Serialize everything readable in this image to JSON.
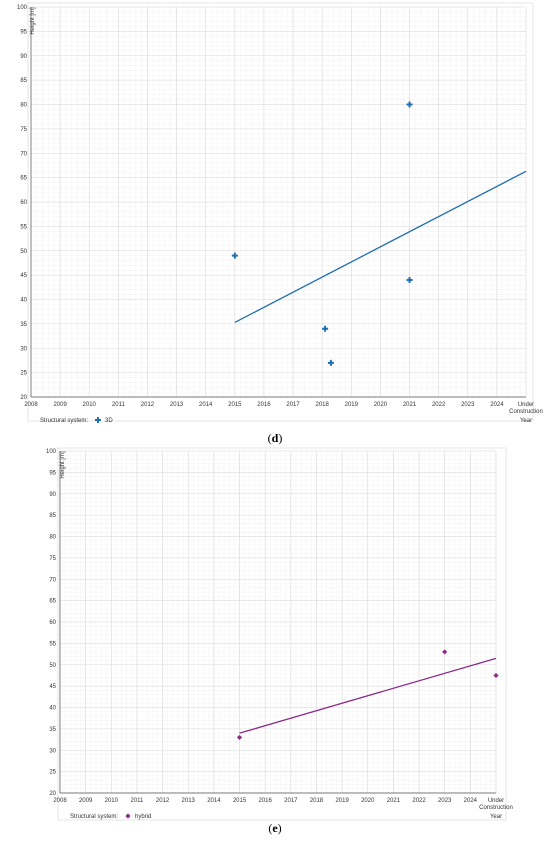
{
  "chart_data": [
    {
      "type": "scatter",
      "panel_label": "d",
      "ylabel": "Height [m]",
      "xlabel": "Year",
      "ylim": [
        20,
        100
      ],
      "yticks": [
        20,
        25,
        30,
        35,
        40,
        45,
        50,
        55,
        60,
        65,
        70,
        75,
        80,
        85,
        90,
        95,
        100
      ],
      "xlim": [
        2008,
        2025
      ],
      "xticks": [
        "2008",
        "2009",
        "2010",
        "2011",
        "2012",
        "2013",
        "2014",
        "2015",
        "2016",
        "2017",
        "2018",
        "2019",
        "2020",
        "2021",
        "2022",
        "2023",
        "2024"
      ],
      "x_last_label": [
        "Under",
        "Construction"
      ],
      "grid": true,
      "legend": {
        "title": "Structural system:",
        "placement": "bottom-left"
      },
      "series": [
        {
          "name": "3D",
          "marker": "plus",
          "color": "#1f6fb0",
          "points": [
            {
              "x": 2015,
              "y": 49
            },
            {
              "x": 2018.1,
              "y": 34
            },
            {
              "x": 2018.3,
              "y": 27
            },
            {
              "x": 2021,
              "y": 80
            },
            {
              "x": 2021,
              "y": 44
            }
          ],
          "trendline": {
            "x": [
              2015,
              2025
            ],
            "y": [
              35.3,
              66.3
            ]
          }
        }
      ]
    },
    {
      "type": "scatter",
      "panel_label": "e",
      "ylabel": "Height [m]",
      "xlabel": "Year",
      "ylim": [
        20,
        100
      ],
      "yticks": [
        20,
        25,
        30,
        35,
        40,
        45,
        50,
        55,
        60,
        65,
        70,
        75,
        80,
        85,
        90,
        95,
        100
      ],
      "xlim": [
        2008,
        2025
      ],
      "xticks": [
        "2008",
        "2009",
        "2010",
        "2011",
        "2012",
        "2013",
        "2014",
        "2015",
        "2016",
        "2017",
        "2018",
        "2019",
        "2020",
        "2021",
        "2022",
        "2023",
        "2024"
      ],
      "x_last_label": [
        "Under",
        "Construction"
      ],
      "grid": true,
      "legend": {
        "title": "Structural system:",
        "placement": "bottom-left"
      },
      "series": [
        {
          "name": "hybrid",
          "marker": "diamond",
          "color": "#8b2a8b",
          "points": [
            {
              "x": 2015,
              "y": 33
            },
            {
              "x": 2023,
              "y": 53
            },
            {
              "x": 2025,
              "y": 47.5
            }
          ],
          "trendline": {
            "x": [
              2015,
              2025
            ],
            "y": [
              34,
              51.5
            ]
          }
        }
      ]
    }
  ]
}
